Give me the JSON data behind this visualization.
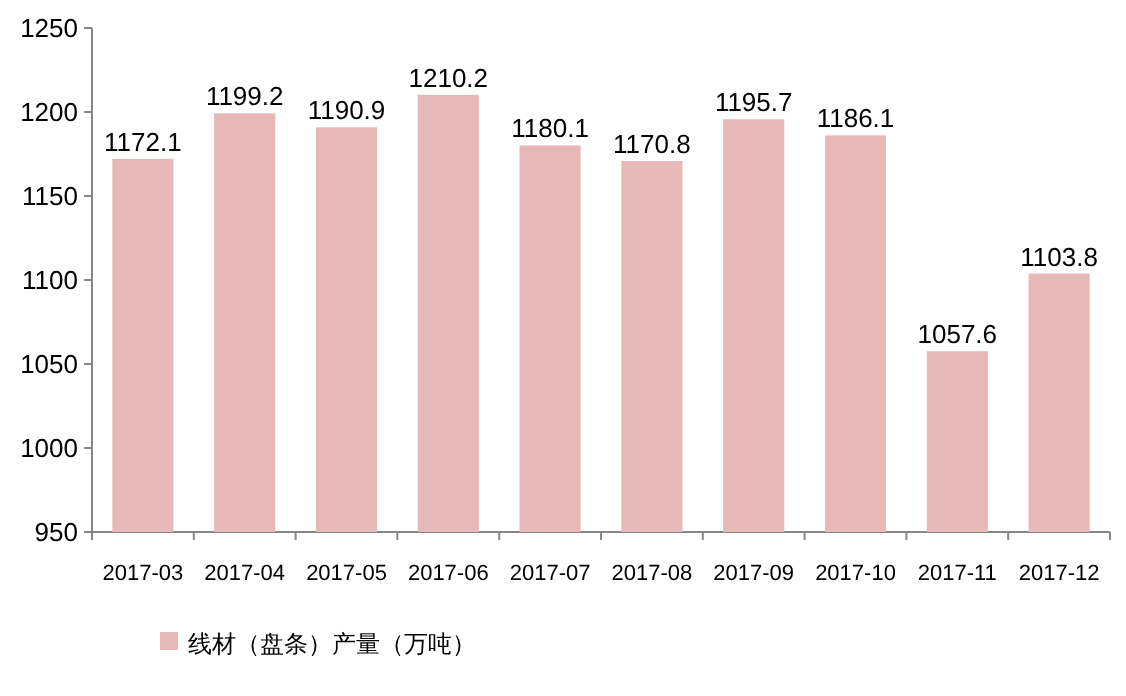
{
  "chart_data": {
    "type": "bar",
    "categories": [
      "2017-03",
      "2017-04",
      "2017-05",
      "2017-06",
      "2017-07",
      "2017-08",
      "2017-09",
      "2017-10",
      "2017-11",
      "2017-12"
    ],
    "series": [
      {
        "name": "线材（盘条）产量（万吨）",
        "color": "#e6b8b7",
        "values": [
          1172.1,
          1199.2,
          1190.9,
          1210.2,
          1180.1,
          1170.8,
          1195.7,
          1186.1,
          1057.6,
          1103.8
        ]
      }
    ],
    "ylim": [
      950,
      1250
    ],
    "yticks": [
      950,
      1000,
      1050,
      1100,
      1150,
      1200,
      1250
    ],
    "data_labels": true,
    "legend": "bottom left"
  }
}
